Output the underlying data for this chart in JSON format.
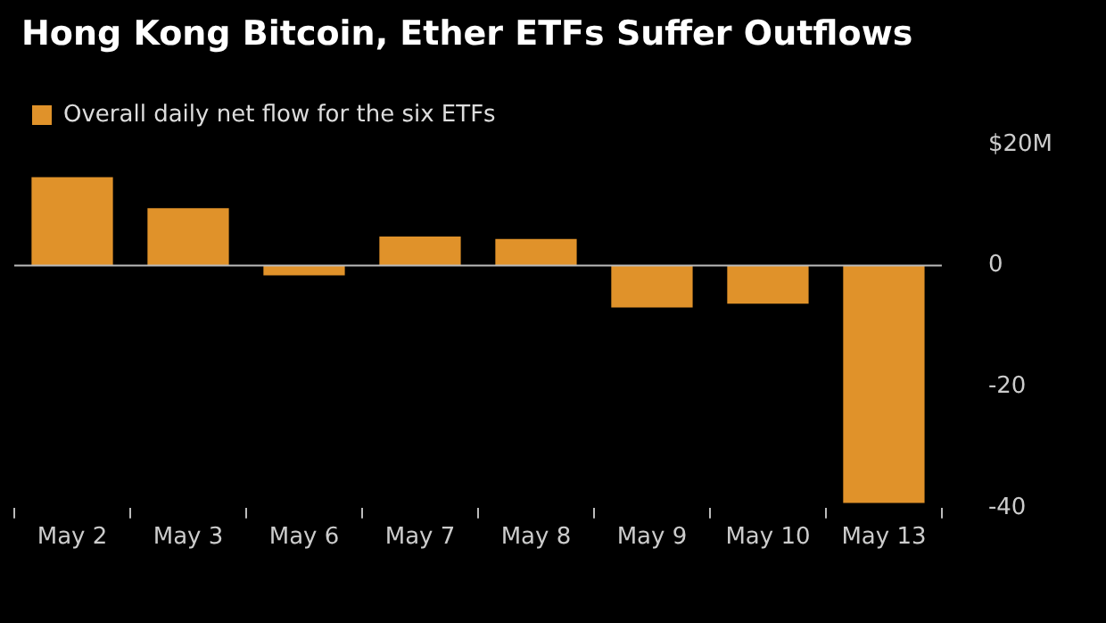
{
  "chart_data": {
    "type": "bar",
    "title": "Hong Kong Bitcoin, Ether ETFs Suffer Outflows",
    "categories": [
      "May 2",
      "May 3",
      "May 6",
      "May 7",
      "May 8",
      "May 9",
      "May 10",
      "May 13"
    ],
    "series": [
      {
        "name": "Overall daily net flow for the six ETFs",
        "color": "#e0922a",
        "values": [
          14.6,
          9.5,
          -1.6,
          4.8,
          4.4,
          -6.9,
          -6.3,
          -39.2
        ]
      }
    ],
    "ylim": [
      -40,
      20
    ],
    "yticks": [
      {
        "value": 20,
        "label": "$20M"
      },
      0,
      -20,
      -40
    ],
    "legend": "top left"
  }
}
